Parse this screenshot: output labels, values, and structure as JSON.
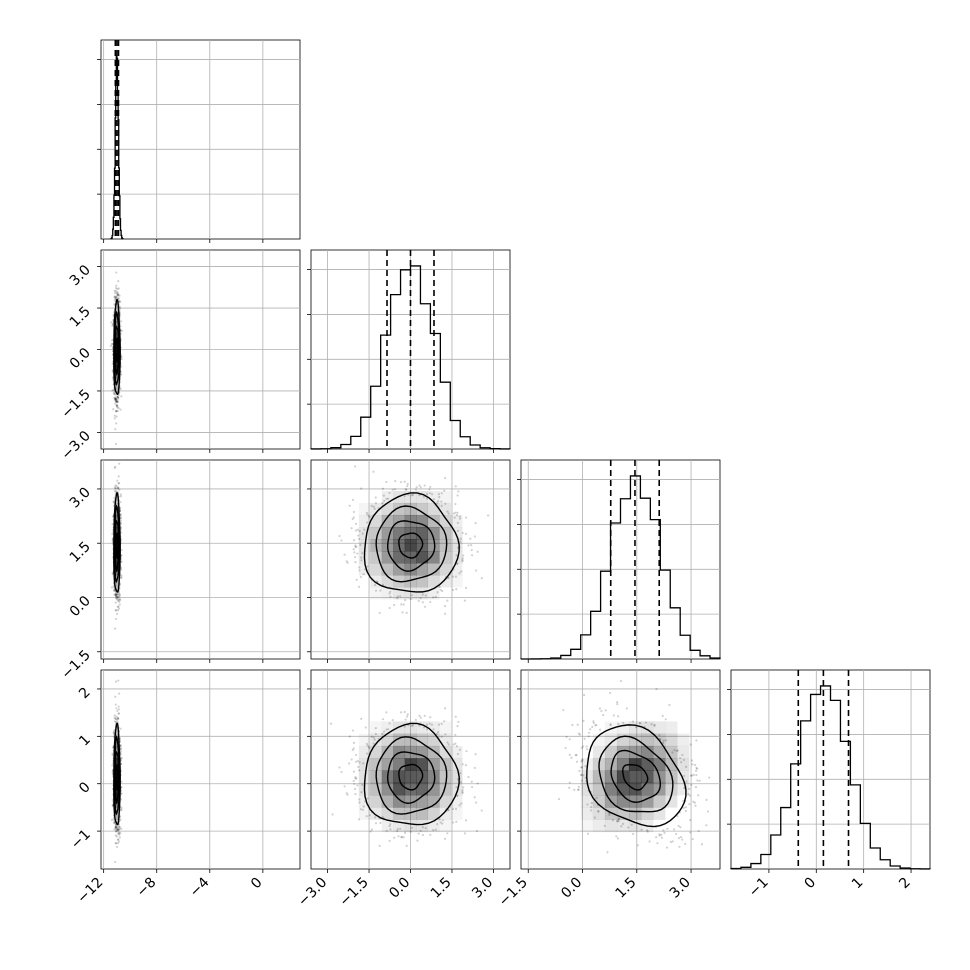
{
  "chart_data": {
    "type": "corner",
    "grid": true,
    "parameters": [
      {
        "index": 0,
        "range": [
          -12.2,
          2.8
        ],
        "ticks": [
          -12,
          -8,
          -4,
          0
        ],
        "tick_labels": [
          "−12",
          "−8",
          "−4",
          "0"
        ],
        "mean": -11.0,
        "sd": 0.12,
        "quantiles": [
          -11.12,
          -11.0,
          -10.88
        ]
      },
      {
        "index": 1,
        "range": [
          -3.6,
          3.6
        ],
        "ticks": [
          -3.0,
          -1.5,
          0.0,
          1.5,
          3.0
        ],
        "tick_labels": [
          "−3.0",
          "−1.5",
          "0.0",
          "1.5",
          "3.0"
        ],
        "mean": 0.0,
        "sd": 0.85,
        "quantiles": [
          -0.85,
          0.0,
          0.85
        ]
      },
      {
        "index": 2,
        "range": [
          -1.7,
          3.8
        ],
        "ticks": [
          -1.5,
          0.0,
          1.5,
          3.0
        ],
        "tick_labels": [
          "−1.5",
          "0.0",
          "1.5",
          "3.0"
        ],
        "mean": 1.45,
        "sd": 0.68,
        "quantiles": [
          0.78,
          1.45,
          2.12
        ]
      },
      {
        "index": 3,
        "range": [
          -1.8,
          2.4
        ],
        "ticks": [
          -1,
          0,
          1,
          2
        ],
        "tick_labels": [
          "−1",
          "0",
          "1",
          "2"
        ],
        "mean": 0.15,
        "sd": 0.53,
        "quantiles": [
          -0.38,
          0.15,
          0.68
        ]
      }
    ],
    "correlations": {
      "2-3": -0.25
    },
    "contour_levels": [
      0.5,
      1.0,
      1.5,
      2.0
    ]
  }
}
